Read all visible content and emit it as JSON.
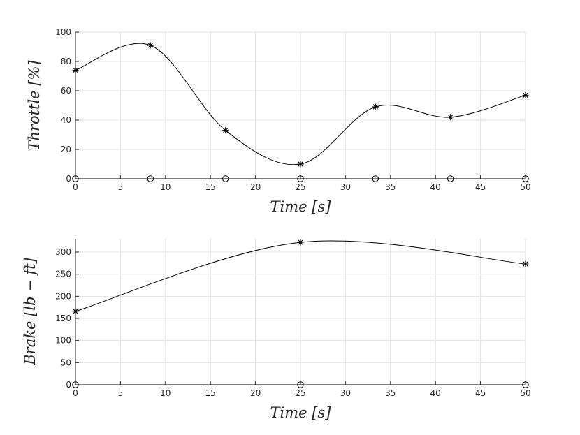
{
  "chart_data": [
    {
      "type": "line",
      "xlabel": "Time [s]",
      "ylabel": "Throttle [%]",
      "xlim": [
        0,
        50
      ],
      "ylim": [
        0,
        100
      ],
      "xticks": [
        0,
        5,
        10,
        15,
        20,
        25,
        30,
        35,
        40,
        45,
        50
      ],
      "yticks": [
        0,
        20,
        40,
        60,
        80,
        100
      ],
      "grid": true,
      "legend": "none",
      "series": [
        {
          "marker": "star",
          "x": [
            0,
            8.33,
            16.67,
            25,
            33.33,
            41.67,
            50
          ],
          "values": [
            74,
            91,
            33,
            10,
            49,
            42,
            57
          ]
        },
        {
          "marker": "circle",
          "x": [
            0,
            8.33,
            16.67,
            25,
            33.33,
            41.67,
            50
          ],
          "values": [
            0,
            0,
            0,
            0,
            0,
            0,
            0
          ]
        }
      ]
    },
    {
      "type": "line",
      "xlabel": "Time [s]",
      "ylabel": "Brake [lb − ft]",
      "xlim": [
        0,
        50
      ],
      "ylim": [
        0,
        330
      ],
      "xticks": [
        0,
        5,
        10,
        15,
        20,
        25,
        30,
        35,
        40,
        45,
        50
      ],
      "yticks": [
        0,
        50,
        100,
        150,
        200,
        250,
        300
      ],
      "grid": true,
      "legend": "none",
      "series": [
        {
          "marker": "star",
          "x": [
            0,
            25,
            50
          ],
          "values": [
            166,
            322,
            273
          ]
        },
        {
          "marker": "circle",
          "x": [
            0,
            25,
            50
          ],
          "values": [
            0,
            0,
            0
          ]
        }
      ]
    }
  ]
}
